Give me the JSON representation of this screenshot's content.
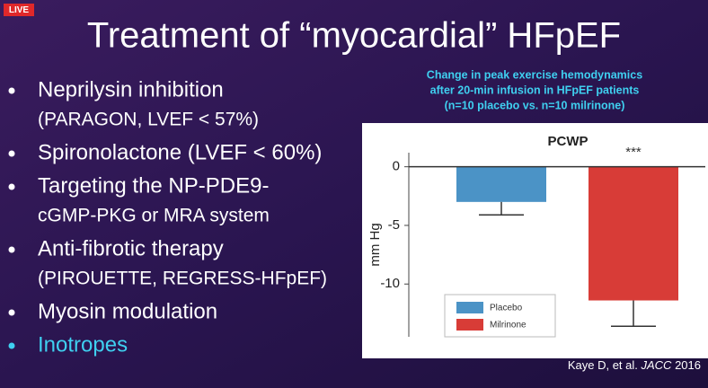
{
  "badge": "LIVE",
  "title": "Treatment of “myocardial” HFpEF",
  "bullets": [
    {
      "lines": [
        "Neprilysin inhibition",
        "(PARAGON, LVEF < 57%)"
      ]
    },
    {
      "lines": [
        "Spironolactone (LVEF < 60%)"
      ]
    },
    {
      "lines": [
        "Targeting the NP-PDE9-",
        "cGMP-PKG or MRA system"
      ]
    },
    {
      "lines": [
        "Anti-fibrotic therapy",
        "(PIROUETTE, REGRESS-HFpEF)"
      ]
    },
    {
      "lines": [
        "Myosin modulation"
      ]
    },
    {
      "lines": [
        "Inotropes"
      ],
      "color": "#3fd0f0"
    }
  ],
  "chart_header": [
    "Change in peak exercise hemodynamics",
    "after 20-min infusion in HFpEF patients",
    "(n=10 placebo vs. n=10 milrinone)"
  ],
  "citation": [
    "Kaye D, et al. ",
    "JACC",
    " 2016"
  ],
  "chart_data": {
    "type": "bar",
    "title": "PCWP",
    "y_label": "mm Hg",
    "series": [
      {
        "name": "Placebo",
        "color": "#4b93c6",
        "values": [
          -3
        ],
        "errors": [
          1.1
        ]
      },
      {
        "name": "Milrinone",
        "color": "#d83c37",
        "values": [
          -11.4
        ],
        "errors": [
          2.2
        ]
      }
    ],
    "annotations": [
      {
        "series": 1,
        "text": "***"
      }
    ],
    "ylim": [
      -14.5,
      1.2
    ],
    "yticks": [
      0,
      -5,
      -10
    ],
    "legend": "lower left"
  }
}
